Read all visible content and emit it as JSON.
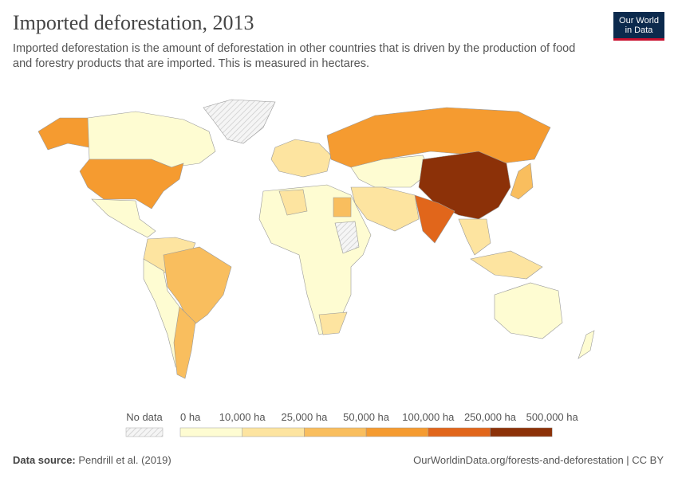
{
  "header": {
    "title": "Imported deforestation, 2013",
    "subtitle": "Imported deforestation is the amount of deforestation in other countries that is driven by the production of food and forestry products that are imported. This is measured in hectares.",
    "logo": [
      "Our World",
      "in Data"
    ]
  },
  "legend": {
    "no_data": "No data",
    "labels": [
      "0 ha",
      "10,000 ha",
      "25,000 ha",
      "50,000 ha",
      "100,000 ha",
      "250,000 ha",
      "500,000 ha"
    ],
    "colors": [
      "#fefcd2",
      "#fde4a0",
      "#f9be5e",
      "#f59b30",
      "#e1661b",
      "#8c3108"
    ]
  },
  "footer": {
    "source_label": "Data source:",
    "source": "Pendrill et al. (2019)",
    "url": "OurWorldinData.org/forests-and-deforestation | CC BY"
  }
}
